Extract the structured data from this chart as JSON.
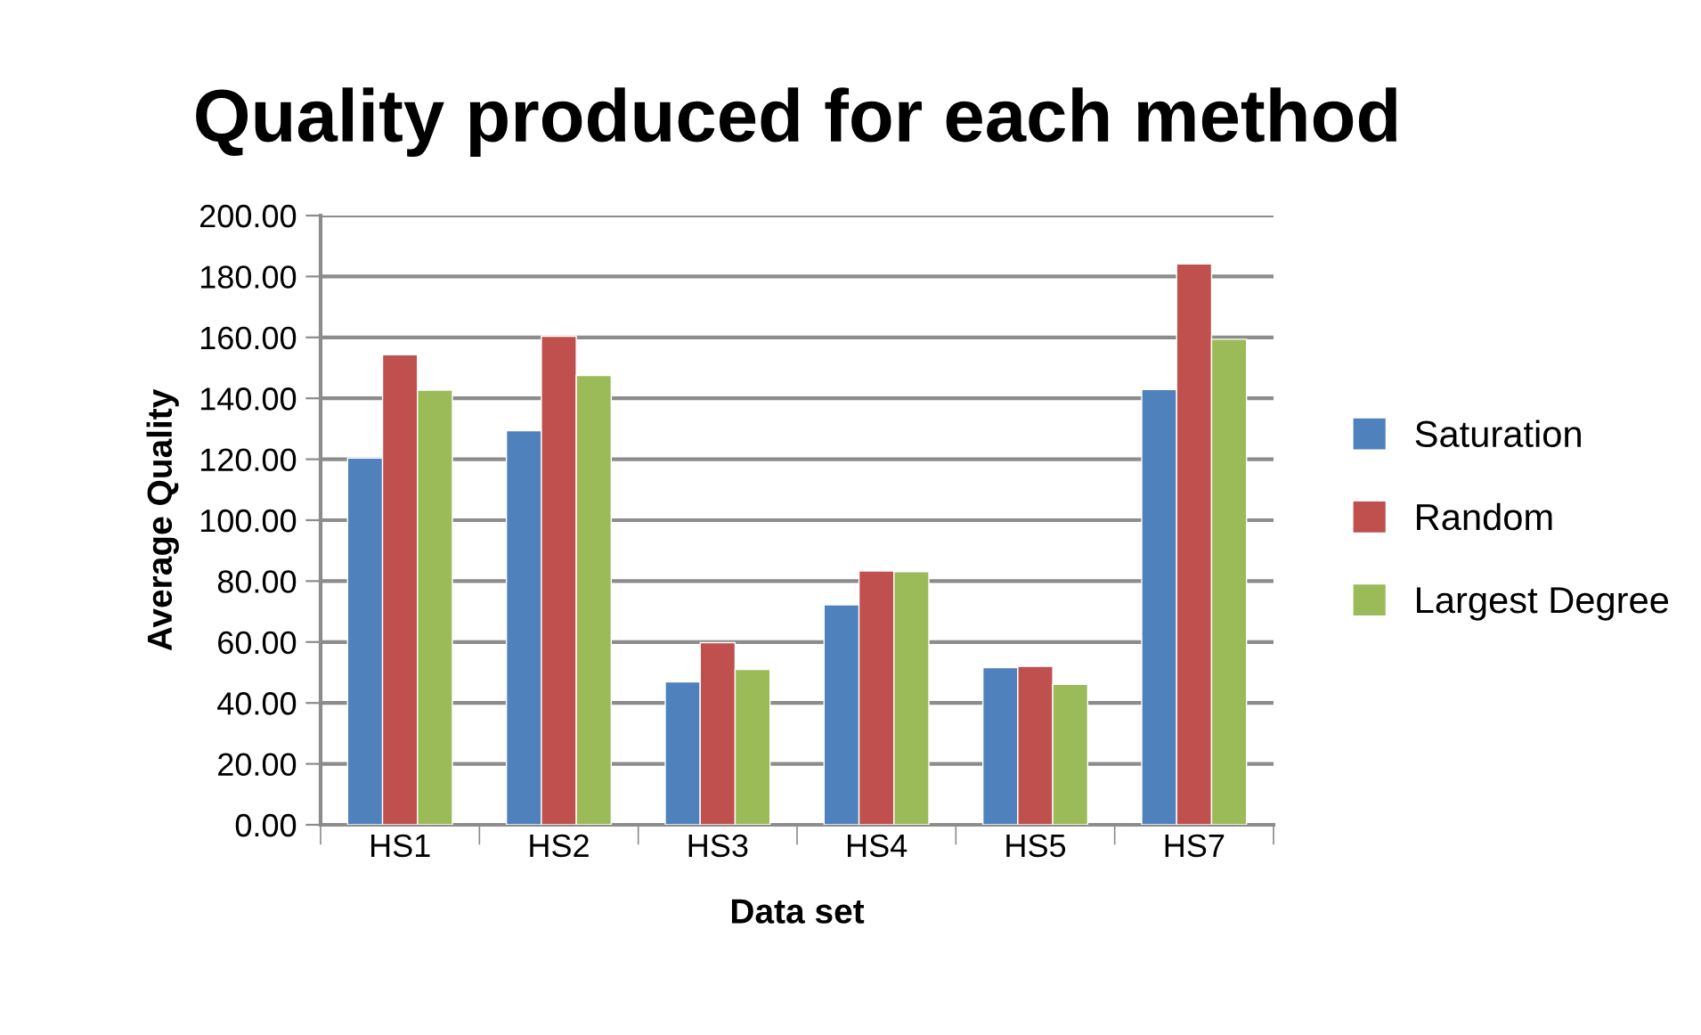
{
  "chart_data": {
    "type": "bar",
    "title": "Quality produced for each method",
    "xlabel": "Data set",
    "ylabel": "Average Quality",
    "categories": [
      "HS1",
      "HS2",
      "HS3",
      "HS4",
      "HS5",
      "HS7"
    ],
    "series": [
      {
        "name": "Saturation",
        "color": "#4f81bd",
        "values": [
          120.4,
          129.4,
          46.9,
          72.2,
          51.6,
          142.9
        ]
      },
      {
        "name": "Random",
        "color": "#c0504d",
        "values": [
          154.3,
          160.4,
          59.8,
          83.3,
          52.0,
          184.1
        ]
      },
      {
        "name": "Largest Degree",
        "color": "#9bbb59",
        "values": [
          142.7,
          147.5,
          51.0,
          83.1,
          46.1,
          159.4
        ]
      }
    ],
    "ylim": [
      0,
      200
    ],
    "yticks": [
      {
        "value": 0,
        "label": "0.00"
      },
      {
        "value": 20,
        "label": "20.00"
      },
      {
        "value": 40,
        "label": "40.00"
      },
      {
        "value": 60,
        "label": "60.00"
      },
      {
        "value": 80,
        "label": "80.00"
      },
      {
        "value": 100,
        "label": "100.00"
      },
      {
        "value": 120,
        "label": "120.00"
      },
      {
        "value": 140,
        "label": "140.00"
      },
      {
        "value": 160,
        "label": "160.00"
      },
      {
        "value": 180,
        "label": "180.00"
      },
      {
        "value": 200,
        "label": "200.00"
      }
    ],
    "grid": "y",
    "legend": "right"
  }
}
